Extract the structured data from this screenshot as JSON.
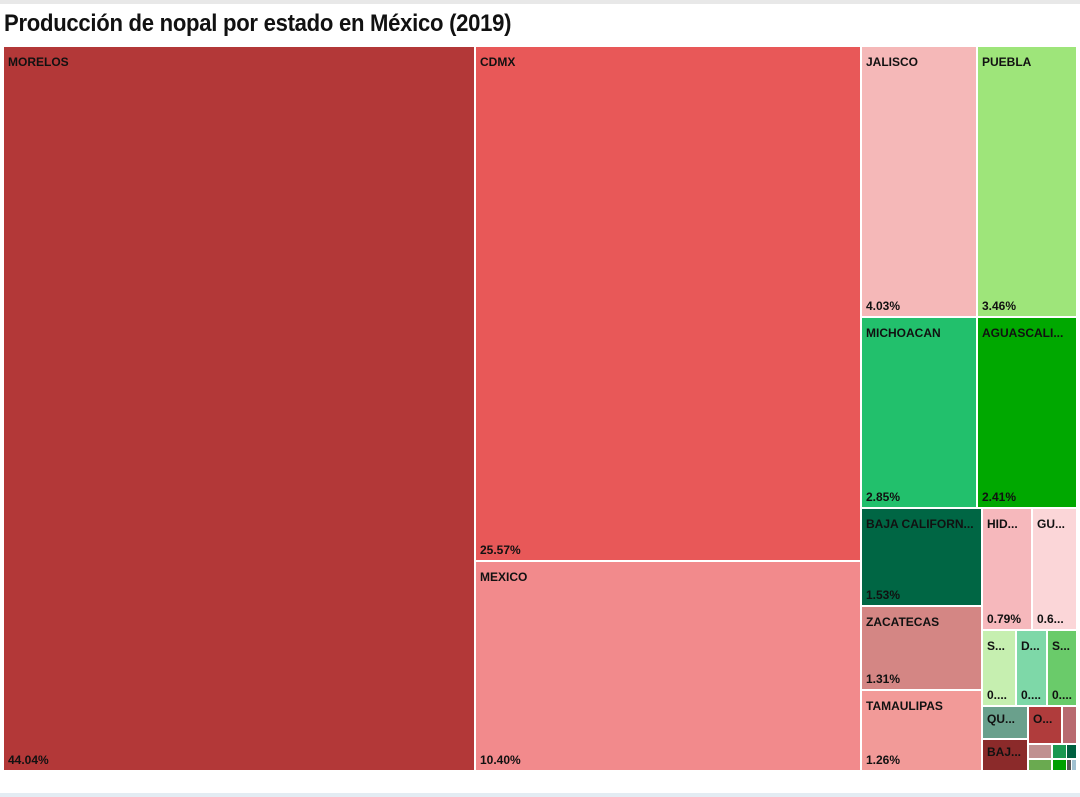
{
  "chart_data": {
    "type": "treemap",
    "title": "Producción de nopal por estado en México (2019)",
    "cells": [
      {
        "label": "MORELOS",
        "value_text": "44.04%",
        "value": 44.04,
        "color": "#b33838"
      },
      {
        "label": "CDMX",
        "value_text": "25.57%",
        "value": 25.57,
        "color": "#e85858"
      },
      {
        "label": "MEXICO",
        "value_text": "10.40%",
        "value": 10.4,
        "color": "#f28a8c"
      },
      {
        "label": "JALISCO",
        "value_text": "4.03%",
        "value": 4.03,
        "color": "#f5b8b8"
      },
      {
        "label": "PUEBLA",
        "value_text": "3.46%",
        "value": 3.46,
        "color": "#9ee57a"
      },
      {
        "label": "MICHOACAN",
        "value_text": "2.85%",
        "value": 2.85,
        "color": "#22c06c"
      },
      {
        "label": "AGUASCALI...",
        "value_text": "2.41%",
        "value": 2.41,
        "color": "#00a800"
      },
      {
        "label": "BAJA CALIFORN...",
        "value_text": "1.53%",
        "value": 1.53,
        "color": "#006644"
      },
      {
        "label": "ZACATECAS",
        "value_text": "1.31%",
        "value": 1.31,
        "color": "#d48684"
      },
      {
        "label": "TAMAULIPAS",
        "value_text": "1.26%",
        "value": 1.26,
        "color": "#f29a98"
      },
      {
        "label": "HID...",
        "value_text": "0.79%",
        "value": 0.79,
        "color": "#f6b8bc"
      },
      {
        "label": "GU...",
        "value_text": "0.6...",
        "color": "#fbd6d8"
      },
      {
        "label": "S...",
        "value_text": "0....",
        "color": "#c6efb0"
      },
      {
        "label": "D...",
        "value_text": "0....",
        "color": "#7ed8a8"
      },
      {
        "label": "S...",
        "value_text": "0....",
        "color": "#6acb6a"
      },
      {
        "label": "QU...",
        "value_text": "",
        "color": "#6aa08c"
      },
      {
        "label": "BAJ...",
        "value_text": "",
        "color": "#8b2a2a"
      },
      {
        "label": "O...",
        "value_text": "",
        "color": "#b03c3c"
      },
      {
        "label": "",
        "value_text": "",
        "color": "#b86a70"
      },
      {
        "label": "",
        "value_text": "",
        "color": "#c09090"
      },
      {
        "label": "",
        "value_text": "",
        "color": "#1a9850"
      },
      {
        "label": "",
        "value_text": "",
        "color": "#00603f"
      },
      {
        "label": "",
        "value_text": "",
        "color": "#6aaa50"
      },
      {
        "label": "",
        "value_text": "",
        "color": "#00a000"
      },
      {
        "label": "",
        "value_text": "",
        "color": "#555555"
      },
      {
        "label": "",
        "value_text": "",
        "color": "#a0c0d0"
      }
    ]
  }
}
